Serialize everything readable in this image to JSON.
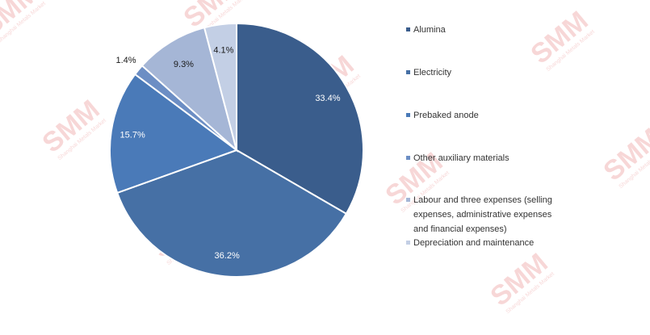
{
  "watermark": {
    "logo": "SMM",
    "subtitle": "Shanghai Metals Market"
  },
  "chart_data": {
    "type": "pie",
    "categories": [
      "Alumina",
      "Electricity",
      "Prebaked anode",
      "Other auxiliary materials",
      "Labour and three expenses (selling expenses, administrative expenses and financial expenses)",
      "Depreciation and maintenance"
    ],
    "legend_lines": [
      [
        "Alumina"
      ],
      [
        "Electricity"
      ],
      [
        "Prebaked anode"
      ],
      [
        "Other auxiliary materials"
      ],
      [
        "Labour and three expenses (selling",
        "expenses, administrative expenses",
        "and financial expenses)"
      ],
      [
        "Depreciation and maintenance"
      ]
    ],
    "values": [
      33.4,
      36.2,
      15.7,
      1.4,
      9.3,
      4.1
    ],
    "data_labels": [
      "33.4%",
      "36.2%",
      "15.7%",
      "1.4%",
      "9.3%",
      "4.1%"
    ],
    "colors": [
      "#3a5d8c",
      "#4670a5",
      "#4a7ab8",
      "#6c8ec4",
      "#a5b6d6",
      "#c3cfe5"
    ],
    "label_colors": [
      "#ffffff",
      "#ffffff",
      "#ffffff",
      "#1a1a1a",
      "#1a1a1a",
      "#1a1a1a"
    ],
    "start_angle_deg": 0,
    "direction": "clockwise",
    "legend_position": "right"
  }
}
